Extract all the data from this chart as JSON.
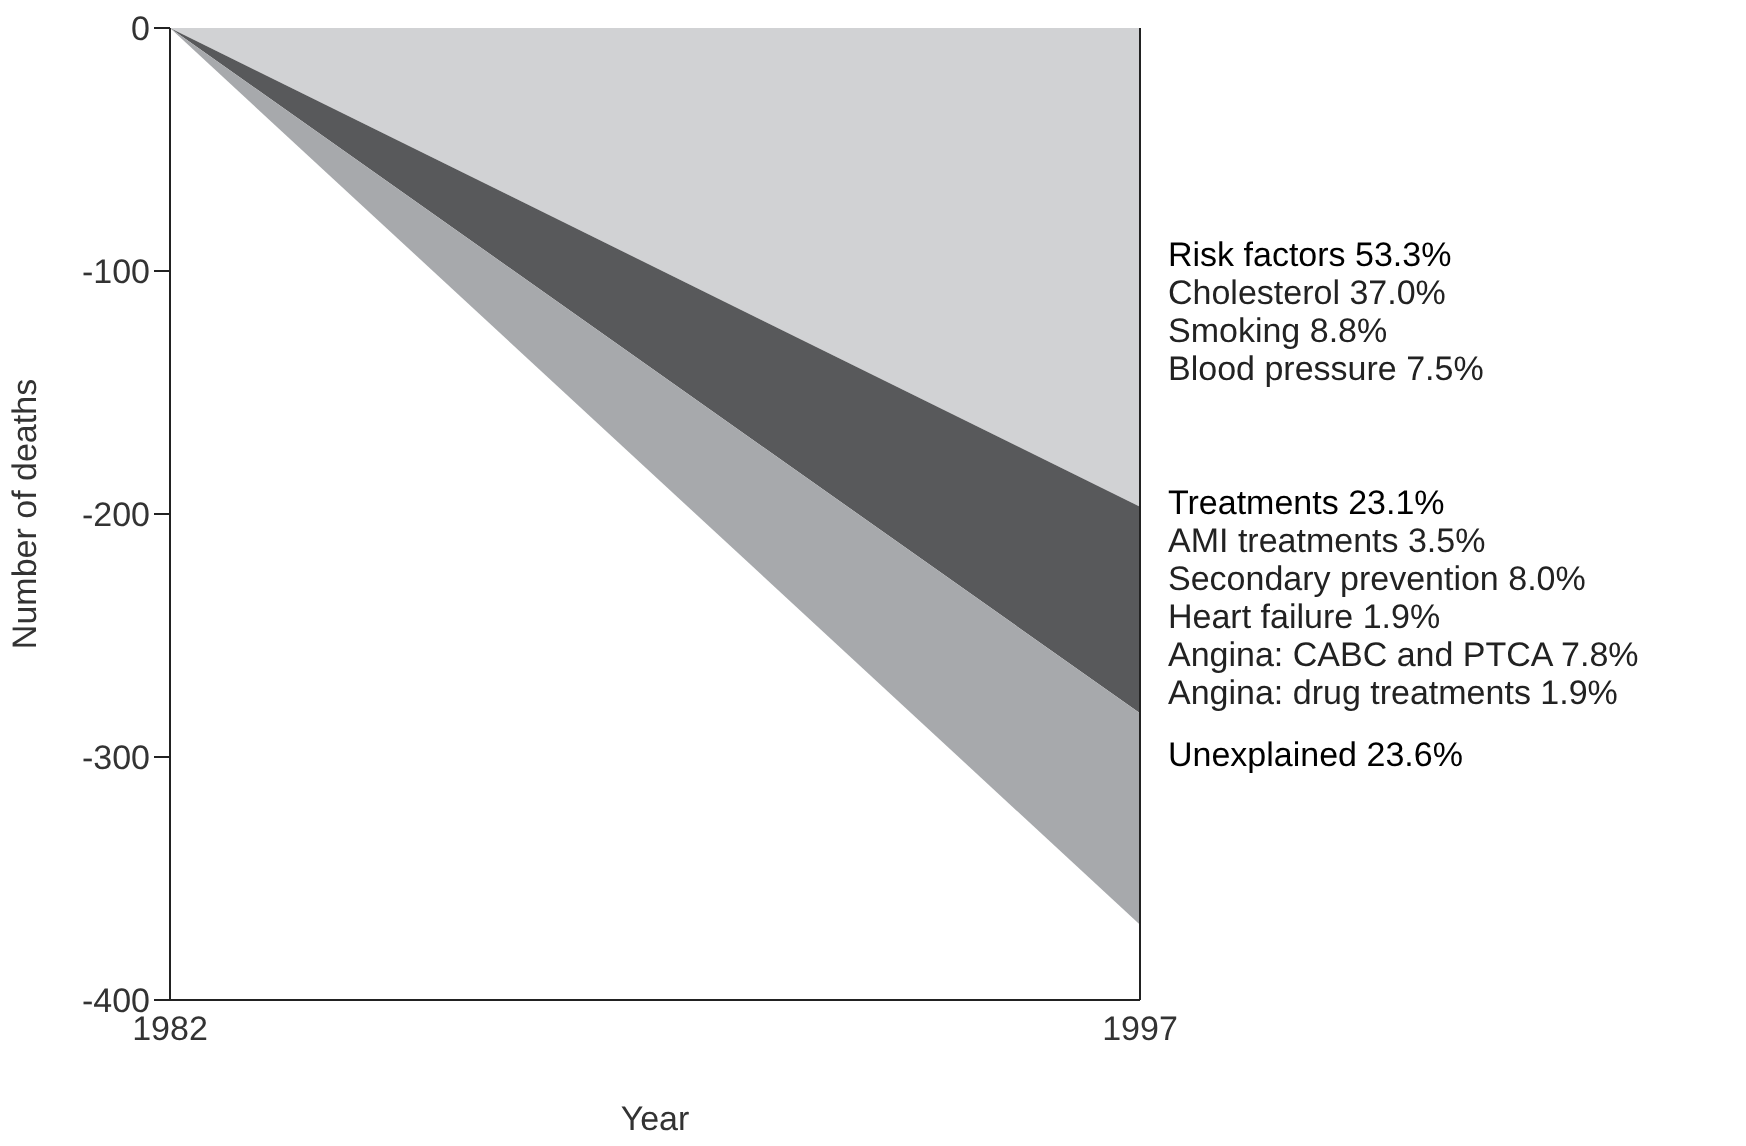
{
  "chart_data": {
    "type": "area",
    "stacked": true,
    "xlabel": "Year",
    "ylabel": "Number of deaths",
    "x": [
      1982,
      1997
    ],
    "xlim": [
      1982,
      1997
    ],
    "xticks": [
      1982,
      1997
    ],
    "ylim": [
      -400,
      0
    ],
    "yticks": [
      0,
      -100,
      -200,
      -300,
      -400
    ],
    "grid": false,
    "legend": false,
    "series": [
      {
        "name": "Risk factors 53.3%",
        "color": "#d1d2d4",
        "values": [
          0,
          -197
        ]
      },
      {
        "name": "Treatments 23.1%",
        "color": "#58595b",
        "values": [
          0,
          -85
        ]
      },
      {
        "name": "Unexplained 23.6%",
        "color": "#a7a9ac",
        "values": [
          0,
          -87
        ]
      }
    ],
    "annotations": [
      "Cholesterol 37.0%",
      "Smoking 8.8%",
      "Blood pressure 7.5%",
      "AMI treatments 3.5%",
      "Secondary prevention 8.0%",
      "Heart failure 1.9%",
      "Angina: CABC and PTCA 7.8%",
      "Angina: drug treatments 1.9%"
    ]
  }
}
